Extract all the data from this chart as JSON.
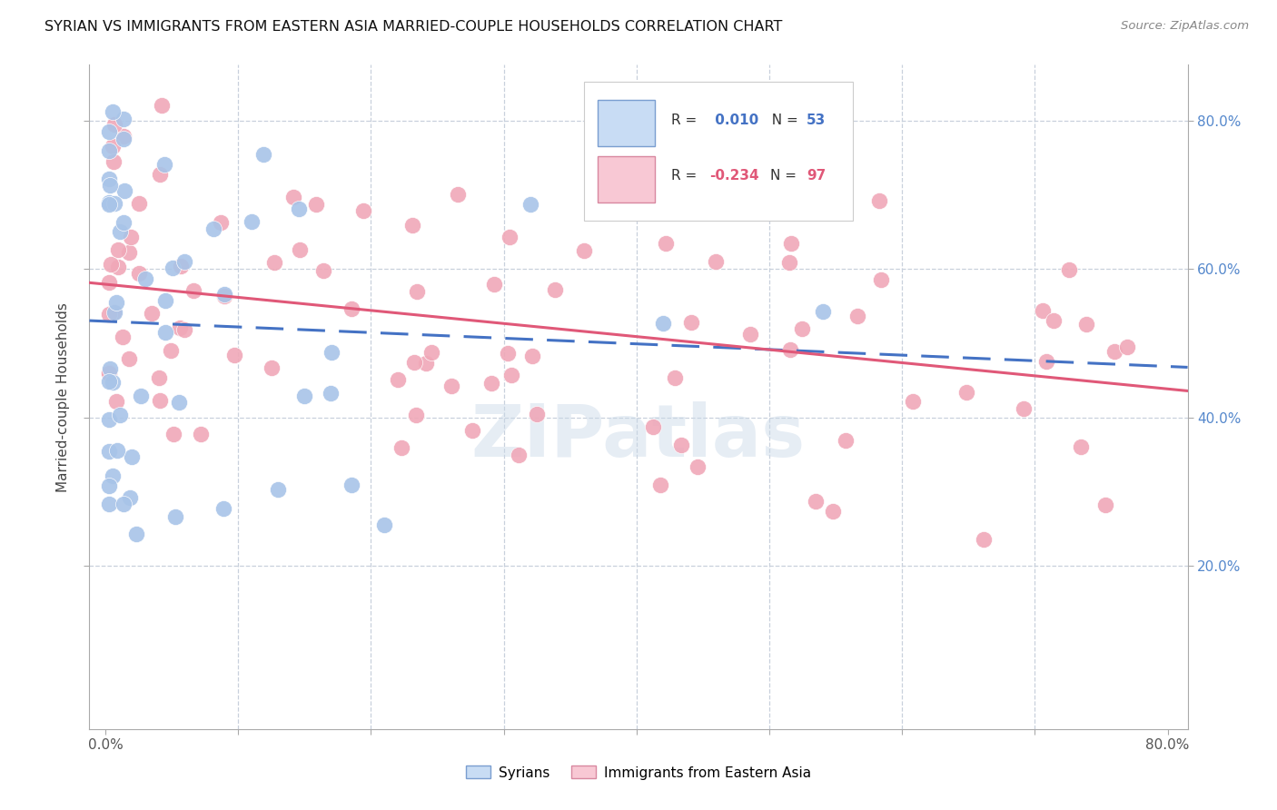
{
  "title": "SYRIAN VS IMMIGRANTS FROM EASTERN ASIA MARRIED-COUPLE HOUSEHOLDS CORRELATION CHART",
  "source": "Source: ZipAtlas.com",
  "ylabel": "Married-couple Households",
  "blue_R": 0.01,
  "blue_N": 53,
  "pink_R": -0.234,
  "pink_N": 97,
  "blue_color": "#a8c4e8",
  "pink_color": "#f0a8b8",
  "blue_line_color": "#4472c4",
  "pink_line_color": "#e05878",
  "legend_blue_fill": "#c8dcf4",
  "legend_pink_fill": "#f8c8d4",
  "watermark": "ZIPatlas",
  "grid_color": "#c8d0dc",
  "bg_color": "#ffffff",
  "right_tick_color": "#5588cc"
}
